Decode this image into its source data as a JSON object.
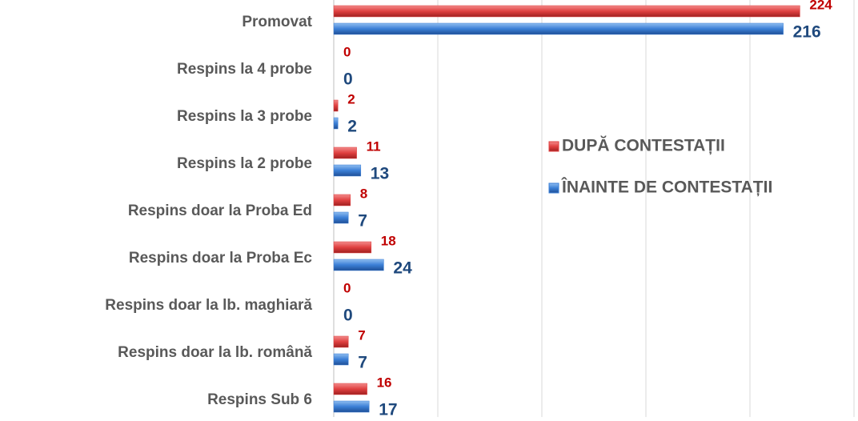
{
  "chart_data": {
    "type": "bar",
    "orientation": "horizontal",
    "categories": [
      "Promovat",
      "Respins la 4 probe",
      "Respins la 3 probe",
      "Respins la 2 probe",
      "Respins doar la Proba Ed",
      "Respins doar la Proba Ec",
      "Respins doar la lb. maghiară",
      "Respins doar la lb. română",
      "Respins Sub 6"
    ],
    "series": [
      {
        "name": "DUPĂ CONTESTAȚII",
        "color": "#e04040",
        "label_color": "#c00000",
        "values": [
          224,
          0,
          2,
          11,
          8,
          18,
          0,
          7,
          16
        ]
      },
      {
        "name": "ÎNAINTE DE CONTESTAȚII",
        "color": "#3b7fd6",
        "label_color": "#1f497d",
        "values": [
          216,
          0,
          2,
          13,
          7,
          24,
          0,
          7,
          17
        ]
      }
    ],
    "xlim": [
      0,
      250
    ],
    "xticks": [
      0,
      50,
      100,
      150,
      200,
      250
    ],
    "grid": true,
    "legend": "right"
  }
}
